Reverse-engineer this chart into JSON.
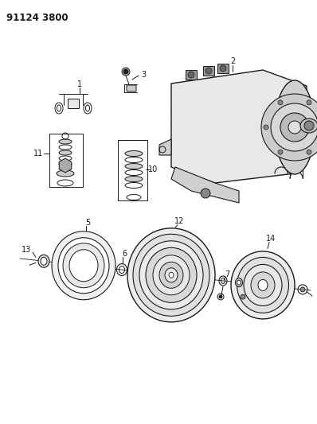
{
  "title": "91124 3800",
  "bg_color": "#ffffff",
  "fg_color": "#1a1a1a",
  "title_fontsize": 8.5,
  "label_fontsize": 7.0,
  "lw": 0.7
}
